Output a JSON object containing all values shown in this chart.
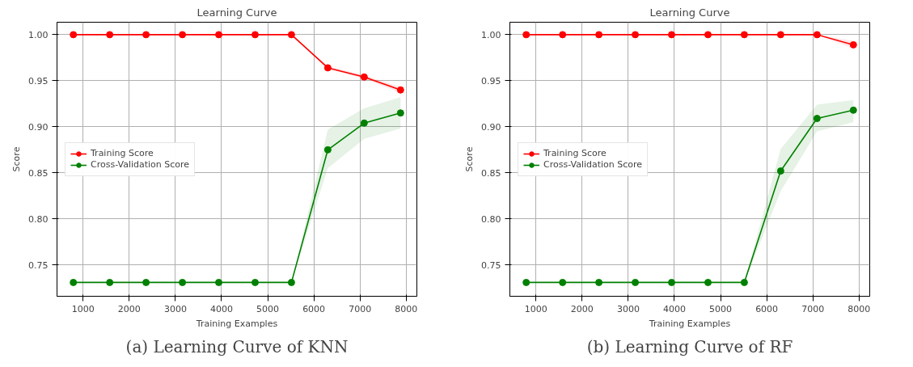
{
  "chart_data": [
    {
      "type": "line",
      "title": "Learning Curve",
      "xlabel": "Training Examples",
      "ylabel": "Score",
      "annotations": [
        "(a) Learning Curve of KNN"
      ],
      "x": [
        788,
        1576,
        2363,
        3151,
        3939,
        4727,
        5514,
        6302,
        7090,
        7878
      ],
      "series": [
        {
          "name": "Training Score",
          "color": "#ff0000",
          "values": [
            1.0,
            1.0,
            1.0,
            1.0,
            1.0,
            1.0,
            1.0,
            0.964,
            0.954,
            0.94
          ],
          "lower": [
            1.0,
            1.0,
            1.0,
            1.0,
            1.0,
            1.0,
            1.0,
            0.963,
            0.952,
            0.937
          ],
          "upper": [
            1.0,
            1.0,
            1.0,
            1.0,
            1.0,
            1.0,
            1.0,
            0.966,
            0.956,
            0.943
          ]
        },
        {
          "name": "Cross-Validation Score",
          "color": "#008000",
          "values": [
            0.731,
            0.731,
            0.731,
            0.731,
            0.731,
            0.731,
            0.731,
            0.875,
            0.904,
            0.915
          ],
          "lower": [
            0.731,
            0.731,
            0.731,
            0.731,
            0.731,
            0.731,
            0.731,
            0.855,
            0.887,
            0.898
          ],
          "upper": [
            0.731,
            0.731,
            0.731,
            0.731,
            0.731,
            0.731,
            0.731,
            0.897,
            0.92,
            0.932
          ]
        }
      ],
      "xlim": [
        434,
        8232
      ],
      "ylim": [
        0.716,
        1.0135
      ],
      "xticks": [
        1000,
        2000,
        3000,
        4000,
        5000,
        6000,
        7000,
        8000
      ],
      "yticks": [
        {
          "value": 0.75,
          "label": "0.75"
        },
        {
          "value": 0.8,
          "label": "0.80"
        },
        {
          "value": 0.85,
          "label": "0.85"
        },
        {
          "value": 0.9,
          "label": "0.90"
        },
        {
          "value": 0.95,
          "label": "0.95"
        },
        {
          "value": 1.0,
          "label": "1.00"
        }
      ],
      "grid": true,
      "legend": "left",
      "marker": "circle",
      "line_style": "solid"
    },
    {
      "type": "line",
      "title": "Learning Curve",
      "xlabel": "Training Examples",
      "ylabel": "Score",
      "annotations": [
        "(b) Learning Curve of RF"
      ],
      "x": [
        788,
        1576,
        2363,
        3151,
        3939,
        4727,
        5514,
        6302,
        7090,
        7878
      ],
      "series": [
        {
          "name": "Training Score",
          "color": "#ff0000",
          "values": [
            1.0,
            1.0,
            1.0,
            1.0,
            1.0,
            1.0,
            1.0,
            1.0,
            1.0,
            0.989
          ],
          "lower": [
            1.0,
            1.0,
            1.0,
            1.0,
            1.0,
            1.0,
            1.0,
            1.0,
            1.0,
            0.985
          ],
          "upper": [
            1.0,
            1.0,
            1.0,
            1.0,
            1.0,
            1.0,
            1.0,
            1.0,
            1.0,
            0.993
          ]
        },
        {
          "name": "Cross-Validation Score",
          "color": "#008000",
          "values": [
            0.731,
            0.731,
            0.731,
            0.731,
            0.731,
            0.731,
            0.731,
            0.852,
            0.909,
            0.918
          ],
          "lower": [
            0.731,
            0.731,
            0.731,
            0.731,
            0.731,
            0.731,
            0.731,
            0.83,
            0.895,
            0.905
          ],
          "upper": [
            0.731,
            0.731,
            0.731,
            0.731,
            0.731,
            0.731,
            0.731,
            0.876,
            0.924,
            0.929
          ]
        }
      ],
      "xlim": [
        434,
        8232
      ],
      "ylim": [
        0.716,
        1.0135
      ],
      "xticks": [
        1000,
        2000,
        3000,
        4000,
        5000,
        6000,
        7000,
        8000
      ],
      "yticks": [
        {
          "value": 0.75,
          "label": "0.75"
        },
        {
          "value": 0.8,
          "label": "0.80"
        },
        {
          "value": 0.85,
          "label": "0.85"
        },
        {
          "value": 0.9,
          "label": "0.90"
        },
        {
          "value": 0.95,
          "label": "0.95"
        },
        {
          "value": 1.0,
          "label": "1.00"
        }
      ],
      "grid": true,
      "legend": "left",
      "marker": "circle",
      "line_style": "solid"
    }
  ]
}
